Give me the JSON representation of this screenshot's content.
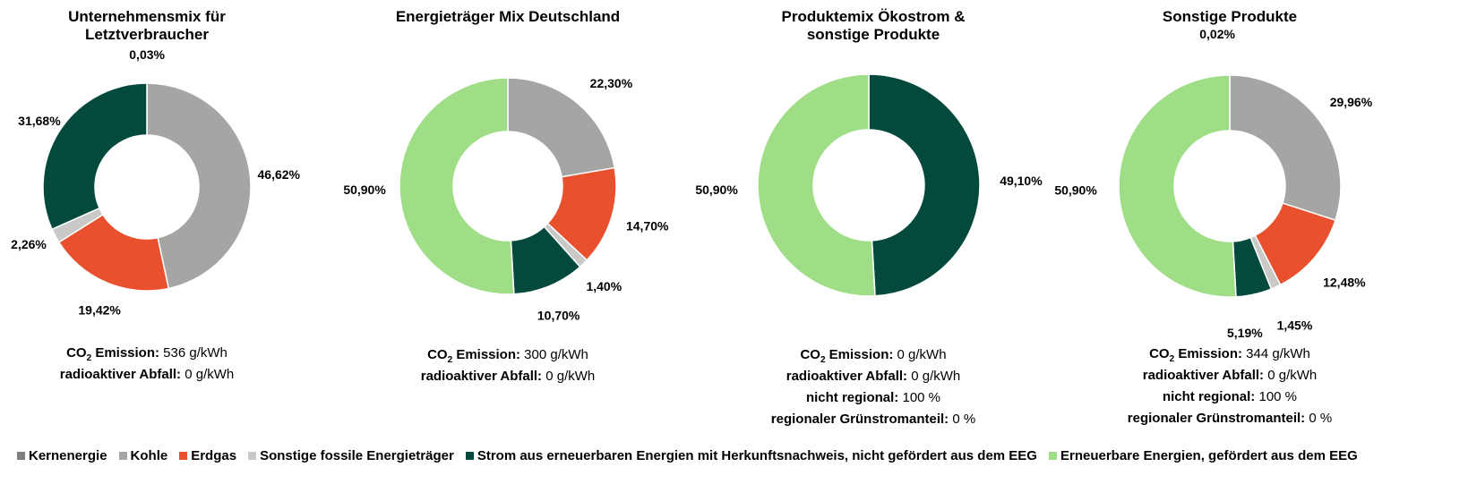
{
  "colors": {
    "kernenergie": "#7f7f7f",
    "kohle": "#a5a5a3",
    "erdgas": "#e9502d",
    "sonstige": "#c9c9c7",
    "strom_hkn": "#034a3d",
    "eeg": "#9fde86"
  },
  "legend": [
    {
      "key": "kernenergie",
      "label": "Kernenergie"
    },
    {
      "key": "kohle",
      "label": "Kohle"
    },
    {
      "key": "erdgas",
      "label": "Erdgas"
    },
    {
      "key": "sonstige",
      "label": "Sonstige fossile Energieträger"
    },
    {
      "key": "strom_hkn",
      "label": "Strom aus erneuerbaren Energien mit Herkunftsnachweis, nicht gefördert aus dem EEG"
    },
    {
      "key": "eeg",
      "label": "Erneuerbare Energien, gefördert aus dem EEG"
    }
  ],
  "chart_data": [
    {
      "type": "pie",
      "title": "Unternehmensmix für\nLetztverbraucher",
      "slices": [
        {
          "key": "kernenergie",
          "value": 0.03,
          "label": "0,03%"
        },
        {
          "key": "kohle",
          "value": 46.62,
          "label": "46,62%"
        },
        {
          "key": "erdgas",
          "value": 19.42,
          "label": "19,42%"
        },
        {
          "key": "sonstige",
          "value": 2.26,
          "label": "2,26%"
        },
        {
          "key": "strom_hkn",
          "value": 31.68,
          "label": "31,68%"
        }
      ],
      "info": [
        {
          "label": "CO2 Emission:",
          "value": "536 g/kWh"
        },
        {
          "label": "radioaktiver Abfall:",
          "value": "0 g/kWh"
        }
      ]
    },
    {
      "type": "pie",
      "title": "Energieträger Mix Deutschland",
      "slices": [
        {
          "key": "kohle",
          "value": 22.3,
          "label": "22,30%"
        },
        {
          "key": "erdgas",
          "value": 14.7,
          "label": "14,70%"
        },
        {
          "key": "sonstige",
          "value": 1.4,
          "label": "1,40%"
        },
        {
          "key": "strom_hkn",
          "value": 10.7,
          "label": "10,70%"
        },
        {
          "key": "eeg",
          "value": 50.9,
          "label": "50,90%"
        }
      ],
      "info": [
        {
          "label": "CO2 Emission:",
          "value": "300 g/kWh"
        },
        {
          "label": "radioaktiver Abfall:",
          "value": "0 g/kWh"
        }
      ]
    },
    {
      "type": "pie",
      "title": "Produktemix Ökostrom &\nsonstige Produkte",
      "slices": [
        {
          "key": "strom_hkn",
          "value": 49.1,
          "label": "49,10%"
        },
        {
          "key": "eeg",
          "value": 50.9,
          "label": "50,90%"
        }
      ],
      "info": [
        {
          "label": "CO2 Emission:",
          "value": "0 g/kWh"
        },
        {
          "label": "radioaktiver Abfall:",
          "value": "0 g/kWh"
        },
        {
          "label": "nicht regional:",
          "value": "100 %"
        },
        {
          "label": "regionaler Grünstromanteil:",
          "value": "0 %"
        }
      ]
    },
    {
      "type": "pie",
      "title": "Sonstige Produkte",
      "slices": [
        {
          "key": "kernenergie",
          "value": 0.02,
          "label": "0,02%"
        },
        {
          "key": "kohle",
          "value": 29.96,
          "label": "29,96%"
        },
        {
          "key": "erdgas",
          "value": 12.48,
          "label": "12,48%"
        },
        {
          "key": "sonstige",
          "value": 1.45,
          "label": "1,45%"
        },
        {
          "key": "strom_hkn",
          "value": 5.19,
          "label": "5,19%"
        },
        {
          "key": "eeg",
          "value": 50.9,
          "label": "50,90%"
        }
      ],
      "info": [
        {
          "label": "CO2 Emission:",
          "value": "344 g/kWh"
        },
        {
          "label": "radioaktiver Abfall:",
          "value": "0 g/kWh"
        },
        {
          "label": "nicht regional:",
          "value": "100 %"
        },
        {
          "label": "regionaler Grünstromanteil:",
          "value": "0 %"
        }
      ]
    }
  ]
}
